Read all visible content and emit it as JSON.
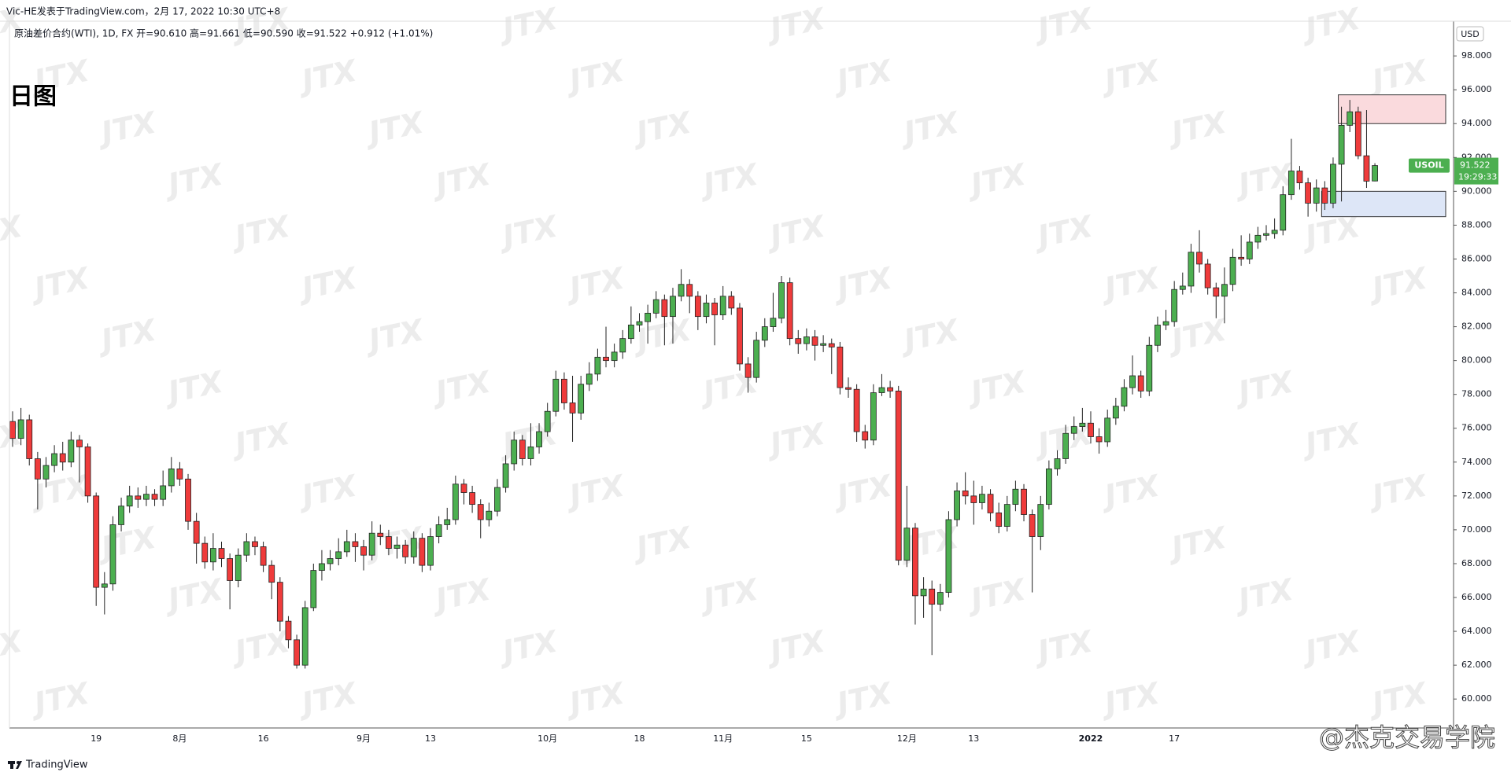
{
  "chart_data": {
    "type": "candlestick",
    "header": "Vic-HE发表于TradingView.com，2月 17, 2022 10:30 UTC+8",
    "legend_line": "原油差价合约(WTI), 1D, FX  开=90.610  高=91.661  低=90.590  收=91.522  +0.912 (+1.01%)",
    "title": "日图",
    "currency": "USD",
    "watermark": "JTX",
    "credit": "@杰克交易学院",
    "brand": "TradingView",
    "up_color": "#4caf50",
    "down_color": "#ef3b3b",
    "price_label": {
      "symbol": "USOIL",
      "price": 91.522,
      "countdown": "19:29:33",
      "color": "#4caf50"
    },
    "zones": [
      {
        "low": 94.0,
        "high": 95.7,
        "start": 159,
        "color": "#fadadd"
      },
      {
        "low": 88.5,
        "high": 90.0,
        "start": 157,
        "color": "#dde6f7"
      }
    ],
    "categories": [
      null,
      null,
      null,
      null,
      null,
      null,
      null,
      null,
      null,
      null,
      "19",
      null,
      null,
      null,
      null,
      null,
      null,
      null,
      null,
      null,
      "8月",
      null,
      null,
      null,
      null,
      null,
      null,
      null,
      null,
      null,
      "16",
      null,
      null,
      null,
      null,
      null,
      null,
      null,
      null,
      null,
      null,
      null,
      "9月",
      null,
      null,
      null,
      null,
      null,
      null,
      null,
      "13",
      null,
      null,
      null,
      null,
      null,
      null,
      null,
      null,
      null,
      null,
      null,
      null,
      null,
      "10月",
      null,
      null,
      null,
      null,
      null,
      null,
      null,
      null,
      null,
      null,
      "18",
      null,
      null,
      null,
      null,
      null,
      null,
      null,
      null,
      null,
      "11月",
      null,
      null,
      null,
      null,
      null,
      null,
      null,
      null,
      null,
      "15",
      null,
      null,
      null,
      null,
      null,
      null,
      null,
      null,
      null,
      null,
      null,
      "12月",
      null,
      null,
      null,
      null,
      null,
      null,
      null,
      "13",
      null,
      null,
      null,
      null,
      null,
      null,
      null,
      null,
      null,
      null,
      null,
      null,
      null,
      "2022",
      null,
      null,
      null,
      null,
      null,
      null,
      null,
      null,
      null,
      "17",
      null,
      null,
      null,
      null,
      null,
      null,
      null,
      null,
      null,
      null,
      null,
      null,
      null,
      null,
      null,
      null,
      null,
      null,
      null,
      null,
      null,
      null,
      null,
      null
    ],
    "open": [
      76.4,
      75.4,
      76.5,
      74.2,
      73.0,
      73.8,
      74.5,
      74.0,
      75.3,
      74.9,
      72.0,
      66.6,
      66.8,
      70.3,
      71.4,
      72.0,
      71.8,
      72.1,
      71.8,
      72.6,
      73.6,
      73.0,
      70.5,
      69.2,
      68.1,
      68.9,
      68.3,
      67.0,
      68.5,
      69.3,
      69.0,
      67.9,
      66.9,
      64.6,
      63.5,
      62.0,
      65.4,
      67.6,
      68.0,
      68.3,
      68.7,
      69.3,
      69.0,
      68.5,
      69.8,
      69.6,
      68.9,
      69.1,
      68.4,
      69.5,
      67.9,
      69.6,
      70.3,
      70.6,
      72.7,
      72.2,
      71.5,
      70.6,
      71.1,
      72.5,
      73.9,
      75.3,
      74.2,
      74.9,
      75.8,
      77.0,
      78.9,
      77.5,
      76.9,
      78.6,
      79.2,
      80.2,
      80.0,
      80.5,
      81.3,
      82.1,
      82.3,
      82.8,
      83.6,
      82.6,
      83.8,
      84.5,
      83.8,
      82.6,
      83.4,
      82.7,
      83.8,
      83.1,
      79.8,
      79.0,
      81.2,
      82.0,
      82.5,
      84.6,
      81.3,
      81.0,
      81.4,
      80.9,
      81.0,
      80.8,
      78.4,
      78.3,
      75.8,
      75.3,
      78.1,
      78.4,
      78.2,
      68.2,
      70.1,
      66.1,
      66.5,
      65.6,
      66.3,
      70.6,
      72.3,
      72.0,
      71.6,
      72.1,
      71.0,
      70.2,
      71.5,
      72.4,
      70.9,
      69.6,
      71.5,
      73.6,
      74.2,
      75.7,
      76.1,
      76.3,
      75.5,
      75.2,
      76.6,
      77.3,
      78.4,
      79.1,
      78.2,
      80.9,
      82.1,
      82.3,
      84.2,
      84.4,
      86.4,
      85.7,
      84.3,
      83.8,
      84.5,
      86.1,
      86.0,
      87.0,
      87.4,
      87.5,
      87.7,
      89.8,
      91.2,
      90.5,
      89.3,
      90.2,
      89.3,
      91.6,
      93.9,
      94.7,
      92.1,
      90.61
    ],
    "high": [
      77.0,
      77.2,
      76.8,
      74.6,
      74.3,
      75.0,
      75.2,
      75.8,
      75.6,
      75.1,
      72.2,
      67.5,
      70.8,
      71.9,
      72.6,
      72.5,
      72.6,
      72.4,
      73.5,
      74.3,
      74.0,
      73.3,
      71.0,
      69.6,
      69.8,
      69.3,
      68.6,
      68.9,
      69.8,
      69.6,
      69.3,
      68.2,
      67.2,
      64.9,
      63.8,
      65.8,
      68.0,
      68.8,
      68.8,
      69.5,
      70.0,
      69.8,
      69.4,
      70.5,
      70.3,
      70.0,
      69.6,
      69.4,
      69.9,
      69.8,
      70.1,
      70.8,
      71.3,
      73.2,
      73.0,
      72.6,
      71.8,
      71.6,
      73.0,
      74.4,
      75.8,
      75.6,
      76.3,
      76.3,
      77.5,
      79.4,
      79.3,
      79.1,
      79.1,
      79.9,
      80.7,
      82.0,
      81.0,
      81.8,
      83.2,
      82.8,
      83.3,
      84.1,
      83.9,
      84.3,
      85.4,
      84.8,
      84.1,
      83.9,
      83.7,
      84.4,
      84.1,
      83.4,
      80.2,
      81.7,
      82.5,
      84.0,
      85.0,
      84.9,
      81.8,
      81.9,
      81.8,
      81.5,
      81.3,
      81.1,
      79.0,
      78.6,
      76.2,
      78.6,
      79.2,
      78.8,
      78.5,
      72.6,
      70.4,
      67.2,
      67.0,
      66.8,
      71.1,
      72.8,
      73.4,
      72.9,
      72.6,
      72.4,
      71.6,
      72.0,
      72.9,
      72.7,
      71.2,
      72.0,
      74.1,
      74.7,
      76.2,
      76.7,
      77.2,
      77.0,
      76.0,
      77.1,
      77.8,
      78.9,
      80.3,
      79.4,
      81.4,
      82.6,
      83.0,
      84.7,
      85.2,
      86.9,
      87.7,
      86.0,
      84.6,
      85.5,
      86.6,
      87.4,
      87.5,
      87.9,
      88.0,
      88.4,
      90.3,
      93.1,
      91.5,
      90.8,
      90.7,
      90.6,
      92.0,
      95.0,
      95.4,
      95.0,
      94.8,
      91.661
    ],
    "low": [
      74.9,
      75.0,
      73.8,
      71.2,
      72.5,
      73.4,
      73.5,
      73.7,
      72.8,
      71.6,
      65.5,
      65.0,
      66.4,
      69.9,
      71.0,
      71.3,
      71.4,
      71.4,
      71.4,
      72.2,
      72.6,
      70.0,
      68.0,
      67.7,
      67.6,
      67.8,
      65.3,
      66.6,
      68.1,
      68.5,
      67.5,
      65.9,
      64.0,
      63.0,
      61.8,
      61.8,
      65.2,
      67.0,
      67.6,
      67.9,
      68.4,
      68.1,
      67.6,
      68.2,
      69.1,
      68.5,
      68.3,
      68.0,
      68.0,
      67.5,
      67.6,
      69.2,
      70.0,
      70.3,
      71.5,
      71.0,
      69.5,
      70.2,
      70.8,
      72.2,
      73.5,
      73.8,
      73.8,
      74.5,
      75.5,
      76.7,
      77.1,
      75.2,
      76.5,
      78.2,
      78.8,
      79.6,
      79.6,
      80.1,
      81.0,
      81.7,
      81.0,
      82.5,
      80.9,
      81.0,
      83.5,
      82.8,
      81.8,
      82.2,
      80.9,
      82.4,
      82.7,
      79.4,
      78.1,
      78.7,
      80.8,
      81.7,
      82.2,
      80.9,
      80.4,
      80.6,
      80.0,
      80.5,
      79.2,
      78.0,
      77.8,
      75.2,
      74.8,
      75.0,
      77.9,
      77.8,
      67.9,
      67.8,
      64.4,
      64.8,
      62.6,
      65.2,
      66.0,
      70.2,
      71.5,
      70.3,
      71.2,
      70.5,
      69.8,
      69.9,
      71.1,
      70.5,
      66.3,
      68.8,
      71.2,
      73.2,
      73.9,
      75.3,
      75.8,
      75.1,
      74.5,
      74.9,
      76.2,
      77.0,
      78.0,
      77.8,
      77.9,
      80.5,
      81.8,
      82.0,
      83.9,
      84.0,
      85.2,
      83.9,
      82.5,
      82.2,
      84.1,
      85.6,
      85.7,
      86.6,
      87.1,
      87.2,
      87.4,
      89.5,
      90.1,
      88.5,
      88.8,
      88.9,
      89.0,
      89.4,
      93.5,
      91.9,
      90.2,
      90.59
    ],
    "close": [
      75.4,
      76.5,
      74.2,
      73.0,
      73.8,
      74.5,
      74.0,
      75.3,
      74.9,
      72.0,
      66.6,
      66.8,
      70.3,
      71.4,
      72.0,
      71.8,
      72.1,
      71.8,
      72.6,
      73.6,
      73.0,
      70.5,
      69.2,
      68.1,
      68.9,
      68.3,
      67.0,
      68.5,
      69.3,
      69.0,
      67.9,
      66.9,
      64.6,
      63.5,
      62.0,
      65.4,
      67.6,
      68.0,
      68.3,
      68.7,
      69.3,
      69.0,
      68.5,
      69.8,
      69.6,
      68.9,
      69.1,
      68.4,
      69.5,
      67.9,
      69.6,
      70.3,
      70.6,
      72.7,
      72.2,
      71.5,
      70.6,
      71.1,
      72.5,
      73.9,
      75.3,
      74.2,
      74.9,
      75.8,
      77.0,
      78.9,
      77.5,
      76.9,
      78.6,
      79.2,
      80.2,
      80.0,
      80.5,
      81.3,
      82.1,
      82.3,
      82.8,
      83.6,
      82.6,
      83.8,
      84.5,
      83.8,
      82.6,
      83.4,
      82.7,
      83.8,
      83.1,
      79.8,
      79.0,
      81.2,
      82.0,
      82.5,
      84.6,
      81.3,
      81.0,
      81.4,
      80.9,
      81.0,
      80.8,
      78.4,
      78.3,
      75.8,
      75.3,
      78.1,
      78.4,
      78.2,
      68.2,
      70.1,
      66.1,
      66.5,
      65.6,
      66.3,
      70.6,
      72.3,
      72.0,
      71.6,
      72.1,
      71.0,
      70.2,
      71.5,
      72.4,
      70.9,
      69.6,
      71.5,
      73.6,
      74.2,
      75.7,
      76.1,
      76.3,
      75.5,
      75.2,
      76.6,
      77.3,
      78.4,
      79.1,
      78.2,
      80.9,
      82.1,
      82.3,
      84.2,
      84.4,
      86.4,
      85.7,
      84.3,
      83.8,
      84.5,
      86.1,
      86.0,
      87.0,
      87.4,
      87.5,
      87.7,
      89.8,
      91.2,
      90.5,
      89.3,
      90.2,
      89.3,
      91.6,
      93.9,
      94.7,
      92.1,
      90.6,
      91.522
    ],
    "ylim": [
      58.29,
      100.05
    ],
    "yticks": [
      {
        "value": 60,
        "label": "60.000"
      },
      {
        "value": 62,
        "label": "62.000"
      },
      {
        "value": 64,
        "label": "64.000"
      },
      {
        "value": 66,
        "label": "66.000"
      },
      {
        "value": 68,
        "label": "68.000"
      },
      {
        "value": 70,
        "label": "70.000"
      },
      {
        "value": 72,
        "label": "72.000"
      },
      {
        "value": 74,
        "label": "74.000"
      },
      {
        "value": 76,
        "label": "76.000"
      },
      {
        "value": 78,
        "label": "78.000"
      },
      {
        "value": 80,
        "label": "80.000"
      },
      {
        "value": 82,
        "label": "82.000"
      },
      {
        "value": 84,
        "label": "84.000"
      },
      {
        "value": 86,
        "label": "86.000"
      },
      {
        "value": 88,
        "label": "88.000"
      },
      {
        "value": 90,
        "label": "90.000"
      },
      {
        "value": 92,
        "label": "92.000"
      },
      {
        "value": 94,
        "label": "94.000"
      },
      {
        "value": 96,
        "label": "96.000"
      },
      {
        "value": 98,
        "label": "98.000"
      }
    ]
  }
}
